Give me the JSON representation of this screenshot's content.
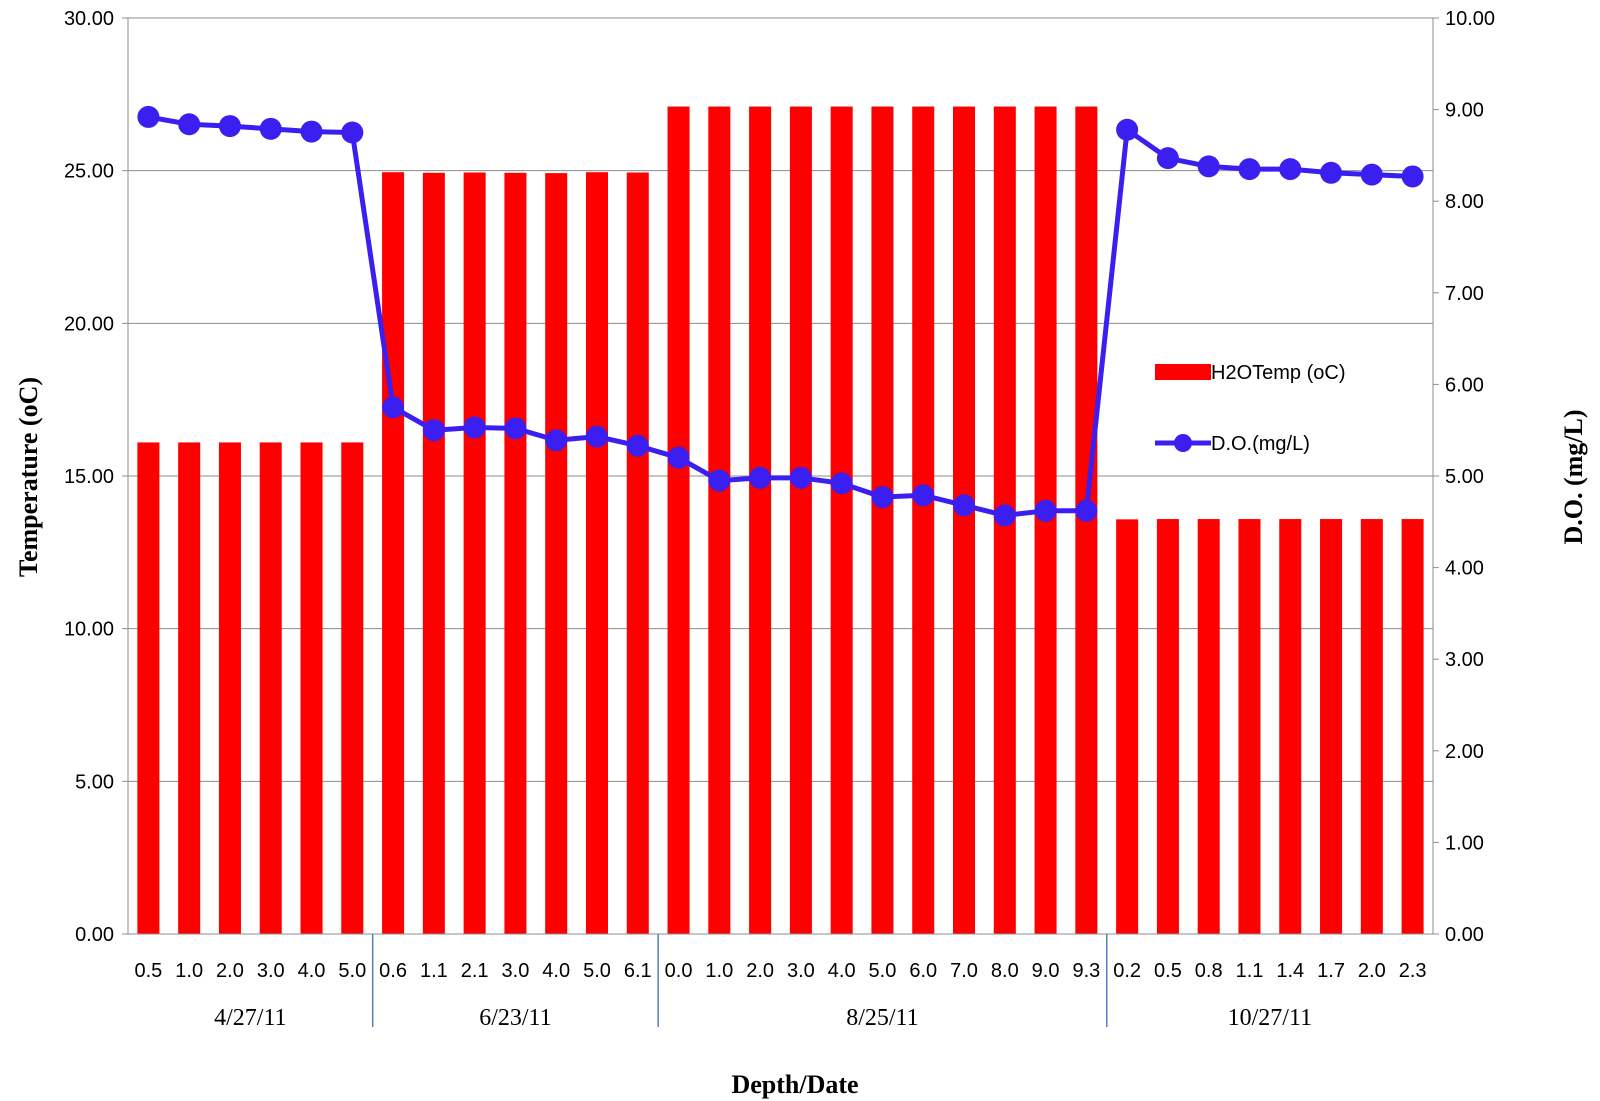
{
  "chart_data": {
    "type": "bar",
    "title": "",
    "xlabel": "Depth/Date",
    "ylabel_left": "Temperature (oC)",
    "ylabel_right": "D.O. (mg/L)",
    "ylim_left": [
      0,
      30
    ],
    "ylim_right": [
      0,
      10
    ],
    "yticks_left": [
      "0.00",
      "5.00",
      "10.00",
      "15.00",
      "20.00",
      "25.00",
      "30.00"
    ],
    "yticks_right": [
      "0.00",
      "1.00",
      "2.00",
      "3.00",
      "4.00",
      "5.00",
      "6.00",
      "7.00",
      "8.00",
      "9.00",
      "10.00"
    ],
    "grid": true,
    "legend_position": "right-middle",
    "categories": [
      "0.5",
      "1.0",
      "2.0",
      "3.0",
      "4.0",
      "5.0",
      "0.6",
      "1.1",
      "2.1",
      "3.0",
      "4.0",
      "5.0",
      "6.1",
      "0.0",
      "1.0",
      "2.0",
      "3.0",
      "4.0",
      "5.0",
      "6.0",
      "7.0",
      "8.0",
      "9.0",
      "9.3",
      "0.2",
      "0.5",
      "0.8",
      "1.1",
      "1.4",
      "1.7",
      "2.0",
      "2.3"
    ],
    "groups": [
      {
        "label": "4/27/11",
        "start": 0,
        "count": 6
      },
      {
        "label": "6/23/11",
        "start": 6,
        "count": 7
      },
      {
        "label": "8/25/11",
        "start": 13,
        "count": 11
      },
      {
        "label": "10/27/11",
        "start": 24,
        "count": 8
      }
    ],
    "series": [
      {
        "name": "H2OTemp (oC)",
        "type": "bar",
        "axis": "left",
        "color": "#ff0000",
        "values": [
          16.1,
          16.1,
          16.1,
          16.1,
          16.1,
          16.1,
          24.95,
          24.93,
          24.94,
          24.93,
          24.92,
          24.95,
          24.94,
          27.1,
          27.1,
          27.1,
          27.1,
          27.1,
          27.1,
          27.1,
          27.1,
          27.1,
          27.1,
          27.1,
          13.58,
          13.59,
          13.59,
          13.59,
          13.59,
          13.59,
          13.59,
          13.59
        ]
      },
      {
        "name": "D.O.(mg/L)",
        "type": "line",
        "axis": "right",
        "color": "#3a1ff0",
        "values": [
          8.92,
          8.84,
          8.82,
          8.79,
          8.76,
          8.75,
          5.75,
          5.5,
          5.53,
          5.52,
          5.39,
          5.43,
          5.33,
          5.2,
          4.95,
          4.98,
          4.98,
          4.92,
          4.77,
          4.79,
          4.68,
          4.57,
          4.62,
          4.62,
          8.78,
          8.47,
          8.38,
          8.35,
          8.35,
          8.31,
          8.29,
          8.27
        ]
      }
    ]
  }
}
